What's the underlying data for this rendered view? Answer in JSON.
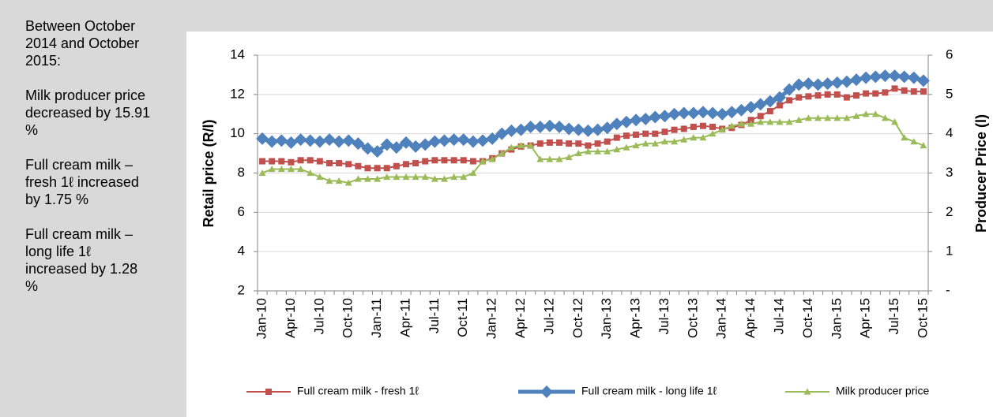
{
  "panel": {
    "paragraphs": [
      "Between October 2014 and October 2015:",
      "Milk producer price decreased by 15.91 %",
      "Full cream milk – fresh 1ℓ increased by 1.75 %",
      "Full cream milk – long life 1ℓ increased by 1.28 %"
    ]
  },
  "chart_data": {
    "type": "line",
    "y_label": "Retail price (R/l)",
    "y2_label": "Producer Price (l)",
    "categories": [
      "Jan-10",
      null,
      null,
      "Apr-10",
      null,
      null,
      "Jul-10",
      null,
      null,
      "Oct-10",
      null,
      null,
      "Jan-11",
      null,
      null,
      "Apr-11",
      null,
      null,
      "Jul-11",
      null,
      null,
      "Oct-11",
      null,
      null,
      "Jan-12",
      null,
      null,
      "Apr-12",
      null,
      null,
      "Jul-12",
      null,
      null,
      "Oct-12",
      null,
      null,
      "Jan-13",
      null,
      null,
      "Apr-13",
      null,
      null,
      "Jul-13",
      null,
      null,
      "Oct-13",
      null,
      null,
      "Jan-14",
      null,
      null,
      "Apr-14",
      null,
      null,
      "Jul-14",
      null,
      null,
      "Oct-14",
      null,
      null,
      "Jan-15",
      null,
      null,
      "Apr-15",
      null,
      null,
      "Jul-15",
      null,
      null,
      "Oct-15"
    ],
    "series": [
      {
        "name": "Full cream milk - fresh 1ℓ",
        "color": "#c0504d",
        "marker": "square",
        "axis": "y",
        "values": [
          8.6,
          8.6,
          8.6,
          8.55,
          8.65,
          8.65,
          8.6,
          8.5,
          8.5,
          8.45,
          8.35,
          8.25,
          8.25,
          8.25,
          8.35,
          8.45,
          8.5,
          8.6,
          8.65,
          8.65,
          8.65,
          8.65,
          8.6,
          8.6,
          8.75,
          9.0,
          9.2,
          9.35,
          9.4,
          9.5,
          9.55,
          9.55,
          9.5,
          9.5,
          9.4,
          9.5,
          9.6,
          9.8,
          9.9,
          9.95,
          10.0,
          10.0,
          10.1,
          10.2,
          10.25,
          10.35,
          10.4,
          10.35,
          10.25,
          10.3,
          10.45,
          10.7,
          10.9,
          11.15,
          11.45,
          11.7,
          11.85,
          11.9,
          11.95,
          12.0,
          12.0,
          11.85,
          11.95,
          12.05,
          12.05,
          12.1,
          12.3,
          12.2,
          12.15,
          12.15
        ]
      },
      {
        "name": "Full cream milk - long life 1ℓ",
        "color": "#4f81bd",
        "marker": "diamond",
        "axis": "y",
        "values": [
          9.75,
          9.6,
          9.65,
          9.55,
          9.7,
          9.65,
          9.6,
          9.7,
          9.6,
          9.65,
          9.5,
          9.25,
          9.1,
          9.45,
          9.3,
          9.55,
          9.35,
          9.45,
          9.6,
          9.65,
          9.7,
          9.7,
          9.6,
          9.65,
          9.75,
          10.0,
          10.15,
          10.2,
          10.35,
          10.35,
          10.4,
          10.35,
          10.25,
          10.2,
          10.15,
          10.2,
          10.3,
          10.5,
          10.6,
          10.7,
          10.75,
          10.85,
          10.9,
          11.0,
          11.05,
          11.05,
          11.1,
          11.05,
          11.0,
          11.1,
          11.2,
          11.35,
          11.5,
          11.65,
          11.85,
          12.25,
          12.5,
          12.55,
          12.5,
          12.55,
          12.6,
          12.65,
          12.75,
          12.85,
          12.9,
          12.95,
          12.95,
          12.9,
          12.85,
          12.7
        ]
      },
      {
        "name": "Milk producer price",
        "color": "#9bbb59",
        "marker": "triangle",
        "axis": "y2",
        "values": [
          3.0,
          3.1,
          3.1,
          3.1,
          3.1,
          3.0,
          2.9,
          2.8,
          2.8,
          2.75,
          2.85,
          2.85,
          2.85,
          2.9,
          2.9,
          2.9,
          2.9,
          2.9,
          2.85,
          2.85,
          2.9,
          2.9,
          3.0,
          3.3,
          3.35,
          3.5,
          3.65,
          3.7,
          3.7,
          3.35,
          3.35,
          3.35,
          3.4,
          3.5,
          3.55,
          3.55,
          3.55,
          3.6,
          3.65,
          3.7,
          3.75,
          3.75,
          3.8,
          3.8,
          3.85,
          3.9,
          3.9,
          4.0,
          4.1,
          4.2,
          4.25,
          4.25,
          4.3,
          4.3,
          4.3,
          4.3,
          4.35,
          4.4,
          4.4,
          4.4,
          4.4,
          4.4,
          4.45,
          4.5,
          4.5,
          4.4,
          4.3,
          3.9,
          3.8,
          3.7
        ]
      }
    ],
    "ylim": [
      2,
      14
    ],
    "yticks": [
      2,
      4,
      6,
      8,
      10,
      12,
      14
    ],
    "y2lim": [
      0,
      6
    ],
    "y2ticks": [
      {
        "value": 0,
        "label": "-"
      },
      1,
      2,
      3,
      4,
      5,
      6
    ],
    "grid": true,
    "legend": "bottom"
  }
}
